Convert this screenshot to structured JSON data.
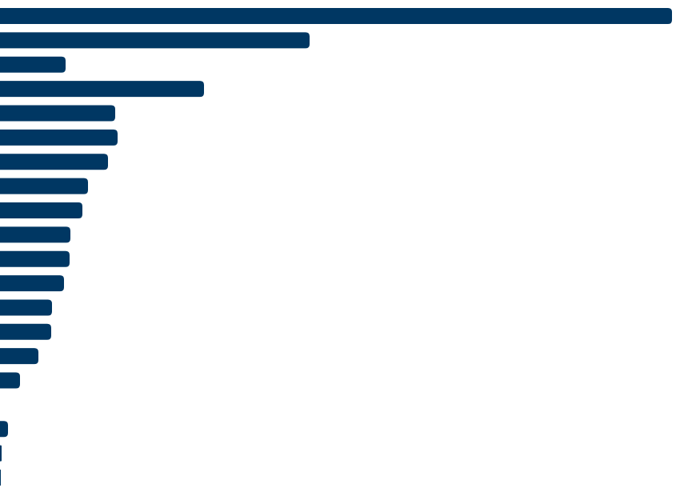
{
  "chart_data": {
    "type": "barh",
    "categories": [
      null,
      null,
      null,
      null,
      null,
      null,
      null,
      null,
      null,
      null,
      null,
      null,
      null,
      null,
      null,
      null,
      null,
      null,
      null,
      null
    ],
    "values": [
      840,
      387,
      82,
      255,
      144,
      147,
      135,
      110,
      103,
      88,
      87,
      80,
      65,
      64,
      48,
      25,
      0,
      10,
      2,
      1
    ],
    "color": "#003763",
    "xlim": [
      0,
      845
    ]
  }
}
